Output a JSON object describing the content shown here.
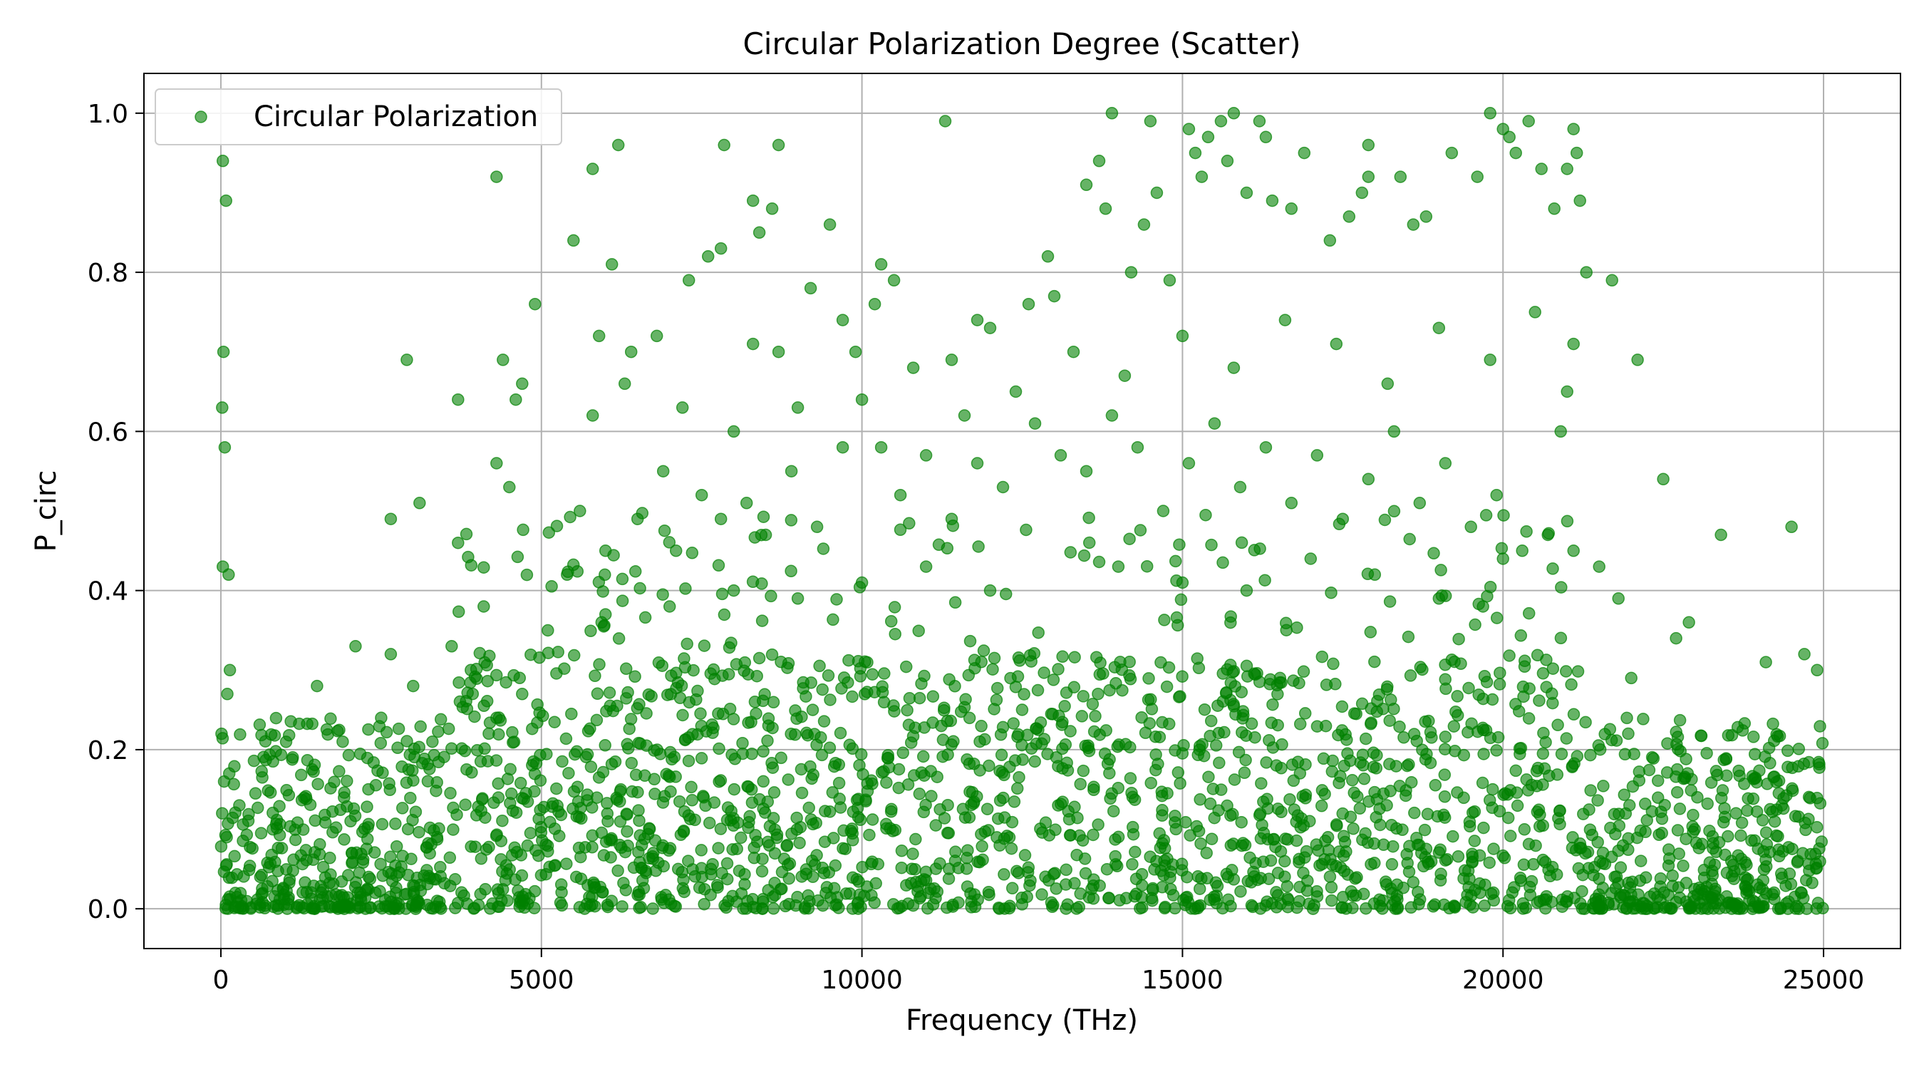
{
  "chart_data": {
    "type": "scatter",
    "title": "Circular Polarization Degree (Scatter)",
    "xlabel": "Frequency (THz)",
    "ylabel": "P_circ",
    "xlim": [
      -1200,
      26200
    ],
    "ylim": [
      -0.05,
      1.05
    ],
    "xticks": [
      0,
      5000,
      10000,
      15000,
      20000,
      25000
    ],
    "xtick_labels": [
      "0",
      "5000",
      "10000",
      "15000",
      "20000",
      "25000"
    ],
    "yticks": [
      0.0,
      0.2,
      0.4,
      0.6,
      0.8,
      1.0
    ],
    "ytick_labels": [
      "0.0",
      "0.2",
      "0.4",
      "0.6",
      "0.8",
      "1.0"
    ],
    "grid": true,
    "legend": {
      "position": "top-left",
      "entries": [
        "Circular Polarization"
      ]
    },
    "series": [
      {
        "name": "Circular Polarization",
        "color": "#008000",
        "alpha": 0.6,
        "marker": "circle",
        "points": [
          [
            30,
            0.94
          ],
          [
            80,
            0.89
          ],
          [
            40,
            0.7
          ],
          [
            20,
            0.63
          ],
          [
            60,
            0.58
          ],
          [
            30,
            0.43
          ],
          [
            120,
            0.42
          ],
          [
            140,
            0.3
          ],
          [
            100,
            0.27
          ],
          [
            10,
            0.22
          ],
          [
            130,
            0.17
          ],
          [
            50,
            0.16
          ],
          [
            20,
            0.12
          ],
          [
            90,
            0.09
          ],
          [
            4300,
            0.92
          ],
          [
            4400,
            0.69
          ],
          [
            4600,
            0.64
          ],
          [
            4300,
            0.56
          ],
          [
            4500,
            0.53
          ],
          [
            4900,
            0.76
          ],
          [
            4700,
            0.66
          ],
          [
            3700,
            0.64
          ],
          [
            2900,
            0.69
          ],
          [
            3100,
            0.51
          ],
          [
            2650,
            0.49
          ],
          [
            3700,
            0.46
          ],
          [
            5500,
            0.84
          ],
          [
            5800,
            0.93
          ],
          [
            6200,
            0.96
          ],
          [
            6100,
            0.81
          ],
          [
            5900,
            0.72
          ],
          [
            6400,
            0.7
          ],
          [
            6800,
            0.72
          ],
          [
            7300,
            0.79
          ],
          [
            7600,
            0.82
          ],
          [
            7850,
            0.96
          ],
          [
            7800,
            0.83
          ],
          [
            8300,
            0.89
          ],
          [
            8600,
            0.88
          ],
          [
            8400,
            0.85
          ],
          [
            8700,
            0.96
          ],
          [
            8700,
            0.7
          ],
          [
            8300,
            0.71
          ],
          [
            9200,
            0.78
          ],
          [
            9500,
            0.86
          ],
          [
            9700,
            0.74
          ],
          [
            9900,
            0.7
          ],
          [
            10300,
            0.81
          ],
          [
            10200,
            0.76
          ],
          [
            10500,
            0.79
          ],
          [
            11300,
            0.99
          ],
          [
            11400,
            0.69
          ],
          [
            11800,
            0.74
          ],
          [
            12000,
            0.73
          ],
          [
            12600,
            0.76
          ],
          [
            12900,
            0.82
          ],
          [
            13000,
            0.77
          ],
          [
            13500,
            0.91
          ],
          [
            13700,
            0.94
          ],
          [
            13900,
            1.0
          ],
          [
            13800,
            0.88
          ],
          [
            14200,
            0.8
          ],
          [
            14500,
            0.99
          ],
          [
            14400,
            0.86
          ],
          [
            14600,
            0.9
          ],
          [
            14800,
            0.79
          ],
          [
            15100,
            0.98
          ],
          [
            15200,
            0.95
          ],
          [
            15400,
            0.97
          ],
          [
            15300,
            0.92
          ],
          [
            15600,
            0.99
          ],
          [
            15800,
            1.0
          ],
          [
            15700,
            0.94
          ],
          [
            16200,
            0.99
          ],
          [
            16300,
            0.97
          ],
          [
            16000,
            0.9
          ],
          [
            16400,
            0.89
          ],
          [
            16700,
            0.88
          ],
          [
            16900,
            0.95
          ],
          [
            17300,
            0.84
          ],
          [
            17600,
            0.87
          ],
          [
            17900,
            0.96
          ],
          [
            17900,
            0.92
          ],
          [
            17800,
            0.9
          ],
          [
            18400,
            0.92
          ],
          [
            18600,
            0.86
          ],
          [
            18800,
            0.87
          ],
          [
            19200,
            0.95
          ],
          [
            19600,
            0.92
          ],
          [
            19800,
            1.0
          ],
          [
            20000,
            0.98
          ],
          [
            20100,
            0.97
          ],
          [
            20200,
            0.95
          ],
          [
            20400,
            0.99
          ],
          [
            20600,
            0.93
          ],
          [
            20800,
            0.88
          ],
          [
            21000,
            0.93
          ],
          [
            21100,
            0.98
          ],
          [
            21150,
            0.95
          ],
          [
            21200,
            0.89
          ],
          [
            21300,
            0.8
          ],
          [
            21100,
            0.71
          ],
          [
            21000,
            0.65
          ],
          [
            20900,
            0.6
          ],
          [
            21700,
            0.79
          ],
          [
            22100,
            0.69
          ],
          [
            22500,
            0.54
          ],
          [
            23400,
            0.47
          ],
          [
            24500,
            0.48
          ],
          [
            24100,
            0.31
          ],
          [
            24700,
            0.32
          ],
          [
            24900,
            0.3
          ],
          [
            22900,
            0.36
          ],
          [
            22700,
            0.34
          ],
          [
            22000,
            0.29
          ],
          [
            21800,
            0.39
          ],
          [
            21500,
            0.43
          ],
          [
            21100,
            0.45
          ],
          [
            2100,
            0.33
          ],
          [
            2650,
            0.32
          ],
          [
            3600,
            0.33
          ],
          [
            4100,
            0.38
          ],
          [
            1500,
            0.28
          ],
          [
            1900,
            0.21
          ],
          [
            2500,
            0.24
          ],
          [
            3000,
            0.28
          ],
          [
            3300,
            0.21
          ],
          [
            3900,
            0.3
          ],
          [
            4300,
            0.24
          ],
          [
            4700,
            0.27
          ],
          [
            5100,
            0.35
          ],
          [
            5400,
            0.42
          ],
          [
            5600,
            0.5
          ],
          [
            6000,
            0.45
          ],
          [
            6500,
            0.49
          ],
          [
            6900,
            0.55
          ],
          [
            7100,
            0.45
          ],
          [
            7500,
            0.52
          ],
          [
            7800,
            0.49
          ],
          [
            8200,
            0.51
          ],
          [
            8500,
            0.47
          ],
          [
            8900,
            0.55
          ],
          [
            9300,
            0.48
          ],
          [
            9700,
            0.58
          ],
          [
            10000,
            0.64
          ],
          [
            10300,
            0.58
          ],
          [
            10600,
            0.52
          ],
          [
            11000,
            0.57
          ],
          [
            11400,
            0.49
          ],
          [
            11800,
            0.56
          ],
          [
            12200,
            0.53
          ],
          [
            12700,
            0.61
          ],
          [
            13100,
            0.57
          ],
          [
            13500,
            0.55
          ],
          [
            13900,
            0.62
          ],
          [
            14300,
            0.58
          ],
          [
            14700,
            0.5
          ],
          [
            15100,
            0.56
          ],
          [
            15500,
            0.61
          ],
          [
            15900,
            0.53
          ],
          [
            16300,
            0.58
          ],
          [
            16700,
            0.51
          ],
          [
            17100,
            0.57
          ],
          [
            17500,
            0.49
          ],
          [
            17900,
            0.54
          ],
          [
            18300,
            0.6
          ],
          [
            18700,
            0.51
          ],
          [
            19100,
            0.56
          ],
          [
            19500,
            0.48
          ],
          [
            19900,
            0.52
          ],
          [
            20300,
            0.45
          ],
          [
            20700,
            0.47
          ],
          [
            5800,
            0.62
          ],
          [
            6300,
            0.66
          ],
          [
            7200,
            0.63
          ],
          [
            8000,
            0.6
          ],
          [
            9000,
            0.63
          ],
          [
            10800,
            0.68
          ],
          [
            11600,
            0.62
          ],
          [
            12400,
            0.65
          ],
          [
            13300,
            0.7
          ],
          [
            14100,
            0.67
          ],
          [
            15000,
            0.72
          ],
          [
            15800,
            0.68
          ],
          [
            16600,
            0.74
          ],
          [
            17400,
            0.71
          ],
          [
            18200,
            0.66
          ],
          [
            19000,
            0.73
          ],
          [
            19800,
            0.69
          ],
          [
            20500,
            0.75
          ],
          [
            14000,
            0.43
          ],
          [
            15000,
            0.41
          ],
          [
            16000,
            0.4
          ],
          [
            17000,
            0.44
          ],
          [
            18000,
            0.42
          ],
          [
            19000,
            0.39
          ],
          [
            20000,
            0.44
          ],
          [
            12000,
            0.4
          ],
          [
            11000,
            0.43
          ],
          [
            10000,
            0.41
          ],
          [
            9000,
            0.39
          ],
          [
            8000,
            0.4
          ],
          [
            7000,
            0.38
          ],
          [
            6000,
            0.37
          ]
        ]
      }
    ]
  }
}
